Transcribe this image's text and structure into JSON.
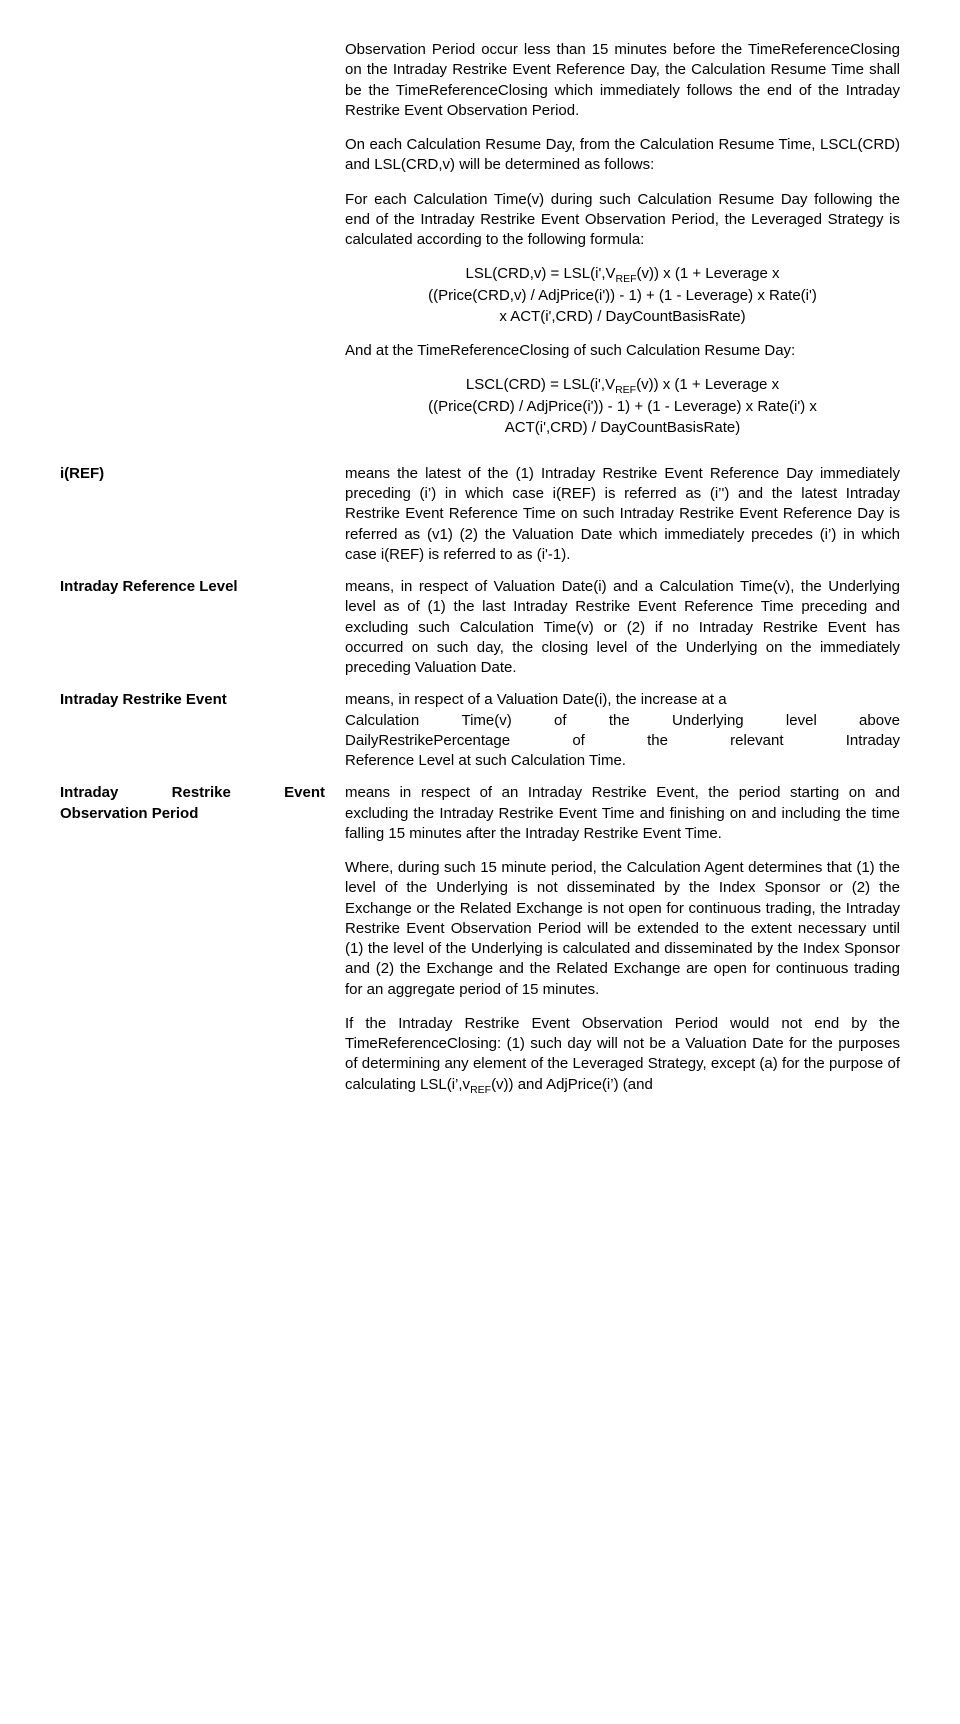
{
  "top": {
    "p1": "Observation Period occur less than 15 minutes before the TimeReferenceClosing on the Intraday Restrike Event Reference Day, the Calculation Resume Time shall be the TimeReferenceClosing which immediately follows the end of the Intraday Restrike Event Observation Period.",
    "p2": "On each Calculation Resume Day, from the Calculation Resume Time, LSCL(CRD) and LSL(CRD,v) will be determined as follows:",
    "p3": "For each Calculation Time(v) during such Calculation Resume Day following the end of the Intraday Restrike Event Observation Period, the Leveraged Strategy is calculated according to the following formula:",
    "f1a": "LSL(CRD,v) = LSL(i',V",
    "f1a_sub": "REF",
    "f1a_tail": "(v)) x (1 + Leverage x",
    "f1b": "((Price(CRD,v) / AdjPrice(i')) - 1) + (1 - Leverage) x Rate(i')",
    "f1c": "x ACT(i',CRD) / DayCountBasisRate)",
    "p4": "And at the TimeReferenceClosing of such Calculation Resume Day:",
    "f2a": "LSCL(CRD) = LSL(i',V",
    "f2a_sub": "REF",
    "f2a_tail": "(v)) x (1 + Leverage x",
    "f2b": "((Price(CRD) / AdjPrice(i')) - 1) + (1 - Leverage) x Rate(i') x",
    "f2c": "ACT(i',CRD) / DayCountBasisRate)"
  },
  "iref": {
    "term": "i(REF)",
    "def": "means the latest of the (1) Intraday Restrike Event Reference Day immediately preceding (i’) in which case i(REF) is referred as (i’') and the latest Intraday Restrike Event Reference Time on such Intraday Restrike Event Reference Day is referred as (v1) (2) the Valuation Date which immediately precedes (i’) in which case i(REF) is referred to as (i'-1)."
  },
  "irl": {
    "term": "Intraday Reference Level",
    "def": "means, in respect of Valuation Date(i) and a Calculation Time(v), the Underlying level as of (1) the last Intraday Restrike Event Reference Time preceding and excluding such Calculation Time(v) or (2) if no Intraday Restrike Event has occurred on such day, the closing level of the Underlying on the immediately preceding Valuation Date."
  },
  "ire": {
    "term": "Intraday Restrike Event",
    "def_l1": "means, in respect of a Valuation Date(i), the increase at a",
    "def_l2a": "Calculation",
    "def_l2b": "Time(v)",
    "def_l2c": "of",
    "def_l2d": "the",
    "def_l2e": "Underlying",
    "def_l2f": "level",
    "def_l2g": "above",
    "def_l3a": "DailyRestrikePercentage",
    "def_l3b": "of",
    "def_l3c": "the",
    "def_l3d": "relevant",
    "def_l3e": "Intraday",
    "def_l4": "Reference Level at such Calculation Time."
  },
  "ireop": {
    "term_a": "Intraday",
    "term_b": "Restrike",
    "term_c": "Event",
    "term2": "Observation Period",
    "p1": "means in respect of an Intraday Restrike Event, the period starting on and excluding the Intraday Restrike Event Time and finishing on and including the time falling 15 minutes after the Intraday Restrike Event Time.",
    "p2": "Where, during such 15 minute period, the Calculation Agent determines that (1) the level of the Underlying is not disseminated by the Index Sponsor or (2) the Exchange or the Related Exchange is not open for continuous trading, the Intraday Restrike Event Observation Period will be extended to the extent necessary until (1) the level of the Underlying is calculated and disseminated by the Index Sponsor and (2) the Exchange and the Related Exchange are open for continuous trading for an aggregate period of 15 minutes.",
    "p3": "If the Intraday Restrike Event Observation Period would not end by the TimeReferenceClosing: (1) such day will not be a Valuation Date for the purposes of determining any element of the Leveraged Strategy, except (a) for the purpose of calculating LSL(i’,v",
    "p3_sub": "REF",
    "p3_tail": "(v)) and AdjPrice(i’) (and"
  }
}
